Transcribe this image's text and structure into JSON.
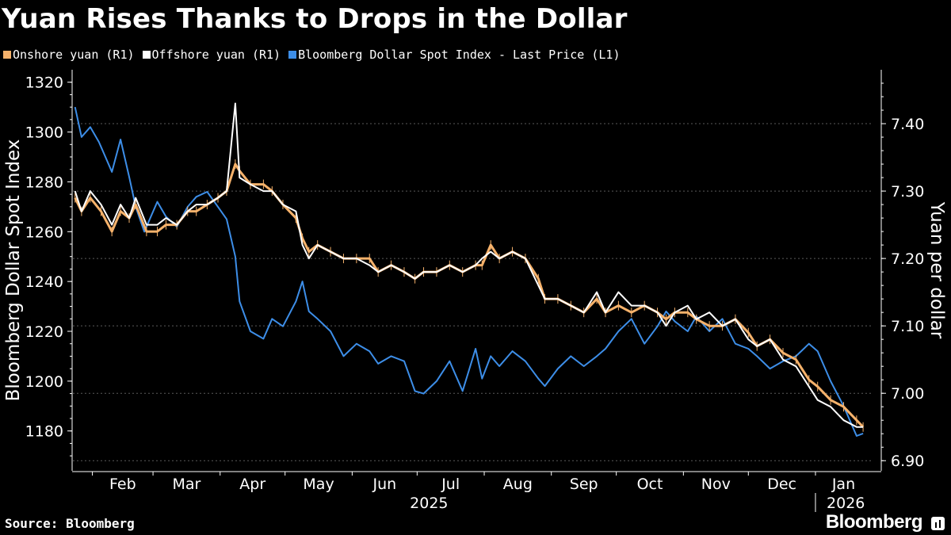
{
  "header": {
    "title": "Yuan Rises Thanks to Drops in the Dollar"
  },
  "footer": {
    "source": "Source: Bloomberg",
    "brand": "Bloomberg"
  },
  "chart_data": {
    "type": "line",
    "title": "Yuan Rises Thanks to Drops in the Dollar",
    "legend_position": "top-left",
    "grid": true,
    "colors": {
      "onshore": "#f6b26b",
      "offshore": "#ffffff",
      "dollar": "#3d8ee8"
    },
    "left_axis": {
      "label": "Bloomberg Dollar Spot Index",
      "range": [
        1164,
        1325
      ],
      "ticks": [
        1180,
        1200,
        1220,
        1240,
        1260,
        1280,
        1300,
        1320
      ]
    },
    "right_axis": {
      "label": "Yuan per dollar",
      "range": [
        6.885,
        7.48
      ],
      "ticks": [
        6.9,
        7.0,
        7.1,
        7.2,
        7.3,
        7.4
      ],
      "tick_labels": [
        "6.90",
        "7.00",
        "7.10",
        "7.20",
        "7.30",
        "7.40"
      ]
    },
    "x_axis": {
      "months": [
        "Feb",
        "Mar",
        "Apr",
        "May",
        "Jun",
        "Jul",
        "Aug",
        "Sep",
        "Oct",
        "Nov",
        "Dec",
        "Jan"
      ],
      "years": [
        "2025",
        "2026"
      ]
    },
    "legend": [
      "Onshore yuan (R1)",
      "Offshore yuan (R1)",
      "Bloomberg Dollar Spot Index - Last Price (L1)"
    ],
    "series": [
      {
        "name": "Onshore yuan (R1)",
        "key": "onshore",
        "axis": "right",
        "x": [
          "2025-01-24",
          "2025-01-27",
          "2025-01-31",
          "2025-02-05",
          "2025-02-10",
          "2025-02-14",
          "2025-02-18",
          "2025-02-21",
          "2025-02-26",
          "2025-03-03",
          "2025-03-07",
          "2025-03-12",
          "2025-03-17",
          "2025-03-21",
          "2025-03-26",
          "2025-03-31",
          "2025-04-04",
          "2025-04-08",
          "2025-04-10",
          "2025-04-15",
          "2025-04-21",
          "2025-04-25",
          "2025-04-30",
          "2025-05-06",
          "2025-05-09",
          "2025-05-12",
          "2025-05-16",
          "2025-05-22",
          "2025-05-28",
          "2025-06-03",
          "2025-06-09",
          "2025-06-13",
          "2025-06-19",
          "2025-06-25",
          "2025-06-30",
          "2025-07-04",
          "2025-07-10",
          "2025-07-16",
          "2025-07-22",
          "2025-07-28",
          "2025-07-31",
          "2025-08-04",
          "2025-08-08",
          "2025-08-14",
          "2025-08-20",
          "2025-08-26",
          "2025-08-29",
          "2025-09-04",
          "2025-09-10",
          "2025-09-16",
          "2025-09-22",
          "2025-09-26",
          "2025-10-02",
          "2025-10-08",
          "2025-10-14",
          "2025-10-20",
          "2025-10-24",
          "2025-10-28",
          "2025-11-03",
          "2025-11-07",
          "2025-11-13",
          "2025-11-19",
          "2025-11-25",
          "2025-12-01",
          "2025-12-05",
          "2025-12-11",
          "2025-12-17",
          "2025-12-23",
          "2025-12-29",
          "2026-01-02",
          "2026-01-08",
          "2026-01-14",
          "2026-01-20",
          "2026-01-23"
        ],
        "values": [
          7.29,
          7.27,
          7.29,
          7.27,
          7.24,
          7.27,
          7.26,
          7.28,
          7.24,
          7.24,
          7.25,
          7.25,
          7.27,
          7.27,
          7.28,
          7.29,
          7.3,
          7.34,
          7.33,
          7.31,
          7.31,
          7.3,
          7.28,
          7.26,
          7.23,
          7.21,
          7.22,
          7.21,
          7.2,
          7.2,
          7.2,
          7.18,
          7.19,
          7.18,
          7.17,
          7.18,
          7.18,
          7.19,
          7.18,
          7.19,
          7.19,
          7.22,
          7.2,
          7.21,
          7.2,
          7.17,
          7.14,
          7.14,
          7.13,
          7.12,
          7.14,
          7.12,
          7.13,
          7.12,
          7.13,
          7.12,
          7.11,
          7.12,
          7.12,
          7.11,
          7.1,
          7.1,
          7.11,
          7.09,
          7.07,
          7.08,
          7.06,
          7.05,
          7.02,
          7.01,
          6.99,
          6.98,
          6.96,
          6.95
        ]
      },
      {
        "name": "Offshore yuan (R1)",
        "key": "offshore",
        "axis": "right",
        "x": [
          "2025-01-24",
          "2025-01-27",
          "2025-01-31",
          "2025-02-05",
          "2025-02-10",
          "2025-02-14",
          "2025-02-18",
          "2025-02-21",
          "2025-02-26",
          "2025-03-03",
          "2025-03-07",
          "2025-03-12",
          "2025-03-17",
          "2025-03-21",
          "2025-03-26",
          "2025-03-31",
          "2025-04-04",
          "2025-04-08",
          "2025-04-10",
          "2025-04-15",
          "2025-04-21",
          "2025-04-25",
          "2025-04-30",
          "2025-05-06",
          "2025-05-09",
          "2025-05-12",
          "2025-05-16",
          "2025-05-22",
          "2025-05-28",
          "2025-06-03",
          "2025-06-09",
          "2025-06-13",
          "2025-06-19",
          "2025-06-25",
          "2025-06-30",
          "2025-07-04",
          "2025-07-10",
          "2025-07-16",
          "2025-07-22",
          "2025-07-28",
          "2025-07-31",
          "2025-08-04",
          "2025-08-08",
          "2025-08-14",
          "2025-08-20",
          "2025-08-26",
          "2025-08-29",
          "2025-09-04",
          "2025-09-10",
          "2025-09-16",
          "2025-09-22",
          "2025-09-26",
          "2025-10-02",
          "2025-10-08",
          "2025-10-14",
          "2025-10-20",
          "2025-10-24",
          "2025-10-28",
          "2025-11-03",
          "2025-11-07",
          "2025-11-13",
          "2025-11-19",
          "2025-11-25",
          "2025-12-01",
          "2025-12-05",
          "2025-12-11",
          "2025-12-17",
          "2025-12-23",
          "2025-12-29",
          "2026-01-02",
          "2026-01-08",
          "2026-01-14",
          "2026-01-20",
          "2026-01-23"
        ],
        "values": [
          7.3,
          7.27,
          7.3,
          7.28,
          7.25,
          7.28,
          7.26,
          7.29,
          7.25,
          7.25,
          7.26,
          7.25,
          7.27,
          7.28,
          7.28,
          7.29,
          7.3,
          7.43,
          7.32,
          7.31,
          7.3,
          7.3,
          7.28,
          7.27,
          7.22,
          7.2,
          7.22,
          7.21,
          7.2,
          7.2,
          7.19,
          7.18,
          7.19,
          7.18,
          7.17,
          7.18,
          7.18,
          7.19,
          7.18,
          7.19,
          7.2,
          7.21,
          7.2,
          7.21,
          7.2,
          7.16,
          7.14,
          7.14,
          7.13,
          7.12,
          7.15,
          7.12,
          7.15,
          7.13,
          7.13,
          7.12,
          7.1,
          7.12,
          7.13,
          7.11,
          7.12,
          7.1,
          7.11,
          7.08,
          7.07,
          7.08,
          7.05,
          7.04,
          7.01,
          6.99,
          6.98,
          6.96,
          6.95,
          6.95
        ]
      },
      {
        "name": "Bloomberg Dollar Spot Index - Last Price (L1)",
        "key": "dollar",
        "axis": "left",
        "x": [
          "2025-01-24",
          "2025-01-27",
          "2025-01-31",
          "2025-02-04",
          "2025-02-10",
          "2025-02-14",
          "2025-02-18",
          "2025-02-21",
          "2025-02-25",
          "2025-03-03",
          "2025-03-07",
          "2025-03-12",
          "2025-03-17",
          "2025-03-21",
          "2025-03-26",
          "2025-03-31",
          "2025-04-04",
          "2025-04-08",
          "2025-04-10",
          "2025-04-15",
          "2025-04-21",
          "2025-04-25",
          "2025-04-30",
          "2025-05-06",
          "2025-05-09",
          "2025-05-12",
          "2025-05-16",
          "2025-05-22",
          "2025-05-28",
          "2025-06-03",
          "2025-06-09",
          "2025-06-13",
          "2025-06-19",
          "2025-06-25",
          "2025-06-30",
          "2025-07-04",
          "2025-07-10",
          "2025-07-16",
          "2025-07-22",
          "2025-07-28",
          "2025-07-31",
          "2025-08-04",
          "2025-08-08",
          "2025-08-14",
          "2025-08-20",
          "2025-08-26",
          "2025-08-29",
          "2025-09-04",
          "2025-09-10",
          "2025-09-16",
          "2025-09-22",
          "2025-09-26",
          "2025-10-02",
          "2025-10-08",
          "2025-10-14",
          "2025-10-20",
          "2025-10-24",
          "2025-10-28",
          "2025-11-03",
          "2025-11-07",
          "2025-11-13",
          "2025-11-19",
          "2025-11-25",
          "2025-12-01",
          "2025-12-05",
          "2025-12-11",
          "2025-12-17",
          "2025-12-23",
          "2025-12-29",
          "2026-01-02",
          "2026-01-08",
          "2026-01-14",
          "2026-01-20",
          "2026-01-23"
        ],
        "values": [
          1310,
          1298,
          1302,
          1296,
          1284,
          1297,
          1282,
          1270,
          1260,
          1272,
          1266,
          1262,
          1270,
          1274,
          1276,
          1270,
          1265,
          1250,
          1232,
          1220,
          1217,
          1225,
          1222,
          1232,
          1240,
          1228,
          1225,
          1220,
          1210,
          1215,
          1212,
          1207,
          1210,
          1208,
          1196,
          1195,
          1200,
          1208,
          1196,
          1213,
          1201,
          1210,
          1206,
          1212,
          1208,
          1201,
          1198,
          1205,
          1210,
          1206,
          1210,
          1213,
          1220,
          1225,
          1215,
          1222,
          1228,
          1224,
          1220,
          1226,
          1220,
          1225,
          1215,
          1213,
          1210,
          1205,
          1208,
          1210,
          1215,
          1212,
          1200,
          1190,
          1178,
          1179
        ]
      }
    ]
  }
}
